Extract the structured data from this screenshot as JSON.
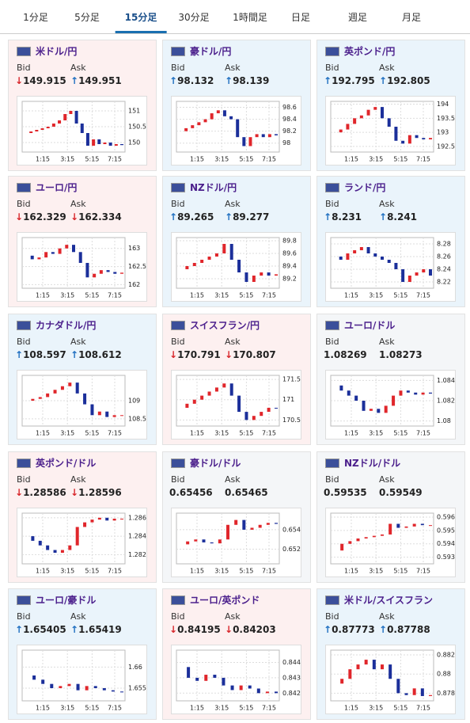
{
  "tabs": [
    "1分足",
    "5分足",
    "15分足",
    "30分足",
    "1時間足",
    "日足",
    "週足",
    "月足"
  ],
  "bid_label": "Bid",
  "ask_label": "Ask",
  "x_labels": [
    "1:15",
    "3:15",
    "5:15",
    "7:15"
  ],
  "panels": [
    {
      "name": "米ドル/円",
      "bid": "↓149.915",
      "ask": "↑149.951",
      "bg": "#fdf0f0",
      "ylim": [
        149.7,
        151.3
      ],
      "yticks": [
        150,
        150.5,
        151
      ],
      "closes": [
        150.3,
        150.35,
        150.4,
        150.45,
        150.5,
        150.6,
        150.7,
        150.9,
        151.0,
        150.6,
        150.3,
        149.9,
        150.1,
        149.95,
        150.0,
        149.9,
        149.95,
        149.92
      ]
    },
    {
      "name": "豪ドル/円",
      "bid": "↑98.132",
      "ask": "↑98.139",
      "bg": "#eaf4fb",
      "ylim": [
        97.85,
        98.7
      ],
      "yticks": [
        98,
        98.2,
        98.4,
        98.6
      ],
      "closes": [
        98.2,
        98.25,
        98.3,
        98.35,
        98.4,
        98.5,
        98.55,
        98.45,
        98.4,
        98.1,
        97.95,
        98.1,
        98.15,
        98.1,
        98.15,
        98.13
      ]
    },
    {
      "name": "英ポンド/円",
      "bid": "↑192.795",
      "ask": "↑192.805",
      "bg": "#eaf4fb",
      "ylim": [
        192.3,
        194.1
      ],
      "yticks": [
        192.5,
        193,
        193.5,
        194
      ],
      "closes": [
        193.0,
        193.1,
        193.3,
        193.5,
        193.6,
        193.8,
        193.9,
        193.5,
        193.2,
        192.7,
        192.6,
        192.9,
        192.8,
        192.75,
        192.8
      ]
    },
    {
      "name": "ユーロ/円",
      "bid": "↓162.329",
      "ask": "↓162.334",
      "bg": "#fdf0f0",
      "ylim": [
        161.9,
        163.3
      ],
      "yticks": [
        162,
        162.5,
        163
      ],
      "closes": [
        162.8,
        162.7,
        162.75,
        162.9,
        162.85,
        163.0,
        163.1,
        162.9,
        162.6,
        162.2,
        162.3,
        162.4,
        162.35,
        162.3,
        162.33
      ]
    },
    {
      "name": "NZドル/円",
      "bid": "↑89.265",
      "ask": "↑89.277",
      "bg": "#eaf4fb",
      "ylim": [
        89.05,
        89.85
      ],
      "yticks": [
        89.2,
        89.4,
        89.6,
        89.8
      ],
      "closes": [
        89.35,
        89.4,
        89.45,
        89.5,
        89.55,
        89.6,
        89.75,
        89.5,
        89.3,
        89.15,
        89.25,
        89.3,
        89.25,
        89.27
      ]
    },
    {
      "name": "ランド/円",
      "bid": "↑8.231",
      "ask": "↑8.241",
      "bg": "#eaf4fb",
      "ylim": [
        8.21,
        8.29
      ],
      "yticks": [
        8.22,
        8.24,
        8.26,
        8.28
      ],
      "closes": [
        8.26,
        8.255,
        8.265,
        8.27,
        8.275,
        8.265,
        8.26,
        8.255,
        8.25,
        8.24,
        8.22,
        8.23,
        8.235,
        8.24,
        8.23
      ]
    },
    {
      "name": "カナダドル/円",
      "bid": "↑108.597",
      "ask": "↑108.612",
      "bg": "#eaf4fb",
      "ylim": [
        108.3,
        109.7
      ],
      "yticks": [
        108.5,
        109
      ],
      "closes": [
        109.0,
        109.05,
        109.1,
        109.2,
        109.3,
        109.4,
        109.5,
        109.2,
        108.9,
        108.6,
        108.7,
        108.55,
        108.6,
        108.6
      ]
    },
    {
      "name": "スイスフラン/円",
      "bid": "↓170.791",
      "ask": "↓170.807",
      "bg": "#fdf0f0",
      "ylim": [
        170.35,
        171.6
      ],
      "yticks": [
        170.5,
        171,
        171.5
      ],
      "closes": [
        170.8,
        170.9,
        171.0,
        171.1,
        171.2,
        171.3,
        171.4,
        171.1,
        170.7,
        170.5,
        170.6,
        170.7,
        170.8,
        170.79
      ]
    },
    {
      "name": "ユーロ/ドル",
      "bid": "1.08269",
      "ask": "1.08273",
      "bg": "#f4f6f8",
      "ylim": [
        1.0795,
        1.0845
      ],
      "yticks": [
        1.08,
        1.082,
        1.084
      ],
      "closes": [
        1.0835,
        1.083,
        1.0825,
        1.082,
        1.081,
        1.0812,
        1.0808,
        1.0815,
        1.0825,
        1.083,
        1.0828,
        1.0826,
        1.0828,
        1.0827
      ]
    },
    {
      "name": "英ポンド/ドル",
      "bid": "↓1.28586",
      "ask": "↓1.28596",
      "bg": "#fdf0f0",
      "ylim": [
        1.281,
        1.2865
      ],
      "yticks": [
        1.282,
        1.284,
        1.286
      ],
      "closes": [
        1.284,
        1.2835,
        1.283,
        1.2825,
        1.2822,
        1.2825,
        1.283,
        1.285,
        1.2855,
        1.2858,
        1.286,
        1.2857,
        1.2859,
        1.2859
      ]
    },
    {
      "name": "豪ドル/ドル",
      "bid": "0.65456",
      "ask": "0.65465",
      "bg": "#f4f6f8",
      "ylim": [
        0.6505,
        0.6557
      ],
      "yticks": [
        0.652,
        0.654
      ],
      "closes": [
        0.6525,
        0.6528,
        0.653,
        0.6527,
        0.6526,
        0.653,
        0.6545,
        0.655,
        0.654,
        0.6542,
        0.6545,
        0.6547,
        0.6546
      ]
    },
    {
      "name": "NZドル/ドル",
      "bid": "0.59535",
      "ask": "0.59549",
      "bg": "#f4f6f8",
      "ylim": [
        0.5925,
        0.5963
      ],
      "yticks": [
        0.593,
        0.594,
        0.595,
        0.596
      ],
      "closes": [
        0.5935,
        0.594,
        0.5942,
        0.5944,
        0.5945,
        0.5946,
        0.5947,
        0.5955,
        0.5952,
        0.5953,
        0.5955,
        0.5954,
        0.5954
      ]
    },
    {
      "name": "ユーロ/豪ドル",
      "bid": "↑1.65405",
      "ask": "↑1.65419",
      "bg": "#eaf4fb",
      "ylim": [
        1.652,
        1.664
      ],
      "yticks": [
        1.655,
        1.66
      ],
      "closes": [
        1.658,
        1.657,
        1.656,
        1.655,
        1.6555,
        1.656,
        1.6545,
        1.6555,
        1.655,
        1.6545,
        1.6542,
        1.654
      ]
    },
    {
      "name": "ユーロ/英ポンド",
      "bid": "↓0.84195",
      "ask": "↓0.84203",
      "bg": "#fdf0f0",
      "ylim": [
        0.8415,
        0.8448
      ],
      "yticks": [
        0.842,
        0.843,
        0.844
      ],
      "closes": [
        0.8437,
        0.843,
        0.8428,
        0.8432,
        0.843,
        0.8425,
        0.8422,
        0.8425,
        0.8423,
        0.842,
        0.8421,
        0.842
      ]
    },
    {
      "name": "米ドル/スイスフラン",
      "bid": "↑0.87773",
      "ask": "↑0.87788",
      "bg": "#eaf4fb",
      "ylim": [
        0.8772,
        0.8825
      ],
      "yticks": [
        0.878,
        0.88,
        0.882
      ],
      "closes": [
        0.879,
        0.8795,
        0.8805,
        0.881,
        0.8815,
        0.8805,
        0.881,
        0.8795,
        0.878,
        0.8778,
        0.8785,
        0.8777,
        0.8778
      ]
    }
  ],
  "active_tab": 2
}
